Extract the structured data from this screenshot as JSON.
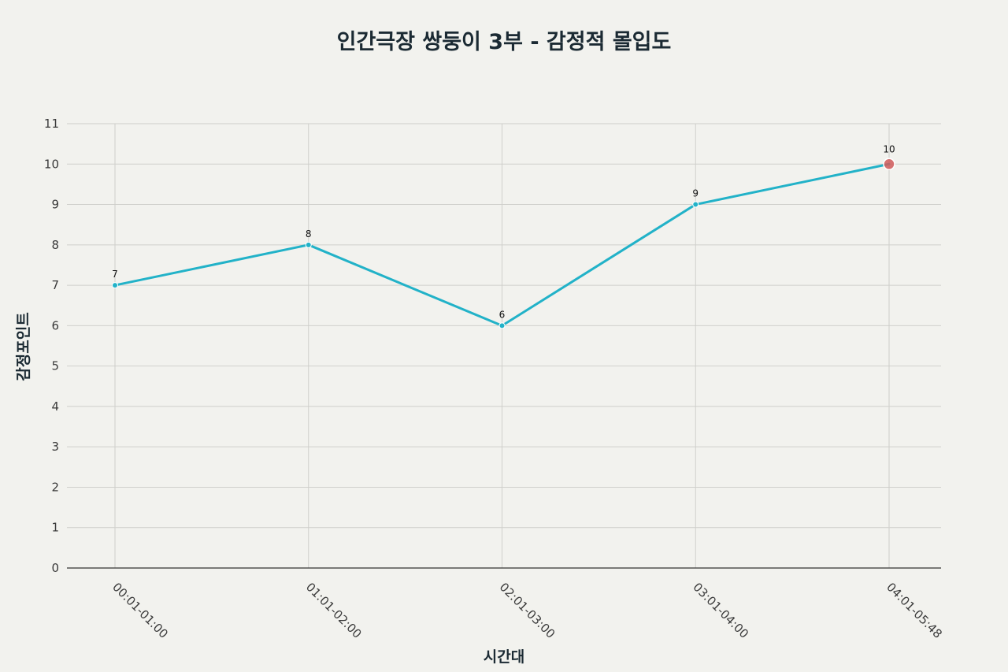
{
  "chart_data": {
    "type": "line",
    "title": "인간극장 쌍둥이 3부 - 감정적 몰입도",
    "xlabel": "시간대",
    "ylabel": "감정포인트",
    "categories": [
      "00:01-01:00",
      "01:01-02:00",
      "02:01-03:00",
      "03:01-04:00",
      "04:01-05:48"
    ],
    "series": [
      {
        "values": [
          7,
          8,
          6,
          9,
          10
        ]
      }
    ],
    "data_labels": [
      "7",
      "8",
      "6",
      "9",
      "10"
    ],
    "highlighted_point": {
      "index": 4,
      "value": 10
    },
    "ylim": [
      0,
      11
    ],
    "yticks": [
      0,
      1,
      2,
      3,
      4,
      5,
      6,
      7,
      8,
      9,
      10,
      11
    ],
    "grid": true,
    "legend": "none",
    "colors": {
      "line": "#22b2c8",
      "marker": "#22b2c8",
      "highlight": "#d05a5a",
      "background": "#f2f2ee"
    }
  }
}
